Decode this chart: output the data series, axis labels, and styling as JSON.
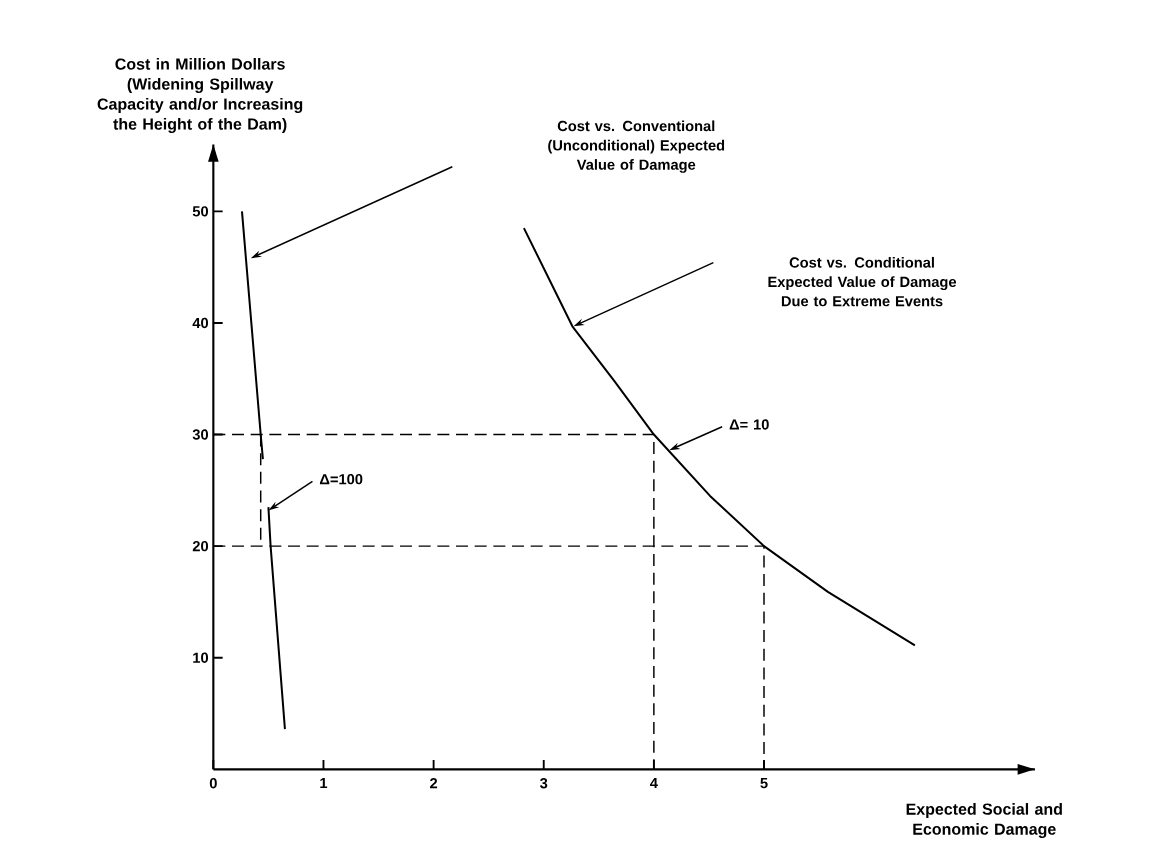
{
  "chart_data": {
    "type": "line",
    "ylabel": "Cost in Million Dollars (Widening Spillway Capacity and/or Increasing the Height of the Dam)",
    "xlabel": "Expected Social and Economic Damage",
    "xlim": [
      0,
      7.46
    ],
    "ylim": [
      0,
      56
    ],
    "xticks": [
      0,
      1,
      2,
      3,
      4,
      5
    ],
    "yticks": [
      10,
      20,
      30,
      40,
      50
    ],
    "grid": false,
    "marker": "none",
    "series": [
      {
        "color": "#000000",
        "line_style": "solid",
        "x": [
          0.26,
          0.43,
          0.45,
          0.47,
          0.5,
          0.52,
          0.65
        ],
        "values": [
          50,
          30,
          27.8,
          null,
          23.5,
          20,
          3.6
        ]
      },
      {
        "color": "#000000",
        "line_style": "solid",
        "x": [
          2.82,
          3.26,
          3.64,
          4,
          4.51,
          5,
          5.58,
          6.37
        ],
        "values": [
          48.5,
          39.7,
          34.8,
          30,
          24.5,
          20,
          15.9,
          11.1
        ]
      },
      {
        "color": "#000000",
        "line_style": "dashed",
        "x": [
          0,
          4,
          4
        ],
        "values": [
          30,
          30,
          0
        ]
      },
      {
        "color": "#000000",
        "line_style": "dashed",
        "x": [
          0,
          5,
          5
        ],
        "values": [
          20,
          20,
          0
        ]
      },
      {
        "color": "#000000",
        "line_style": "dashed",
        "x": [
          0.43,
          0.43
        ],
        "values": [
          30,
          20
        ]
      }
    ],
    "annotations": [
      "Cost vs. Conventional (Unconditional) Expected Value of Damage",
      "Cost vs. Conditional Expected Value of Damage Due to Extreme Events",
      {
        "text": "Δ=100",
        "x": 0.5,
        "y": 23.2
      },
      {
        "text": "Δ= 10",
        "x": 4.14,
        "y": 28.6
      }
    ]
  }
}
